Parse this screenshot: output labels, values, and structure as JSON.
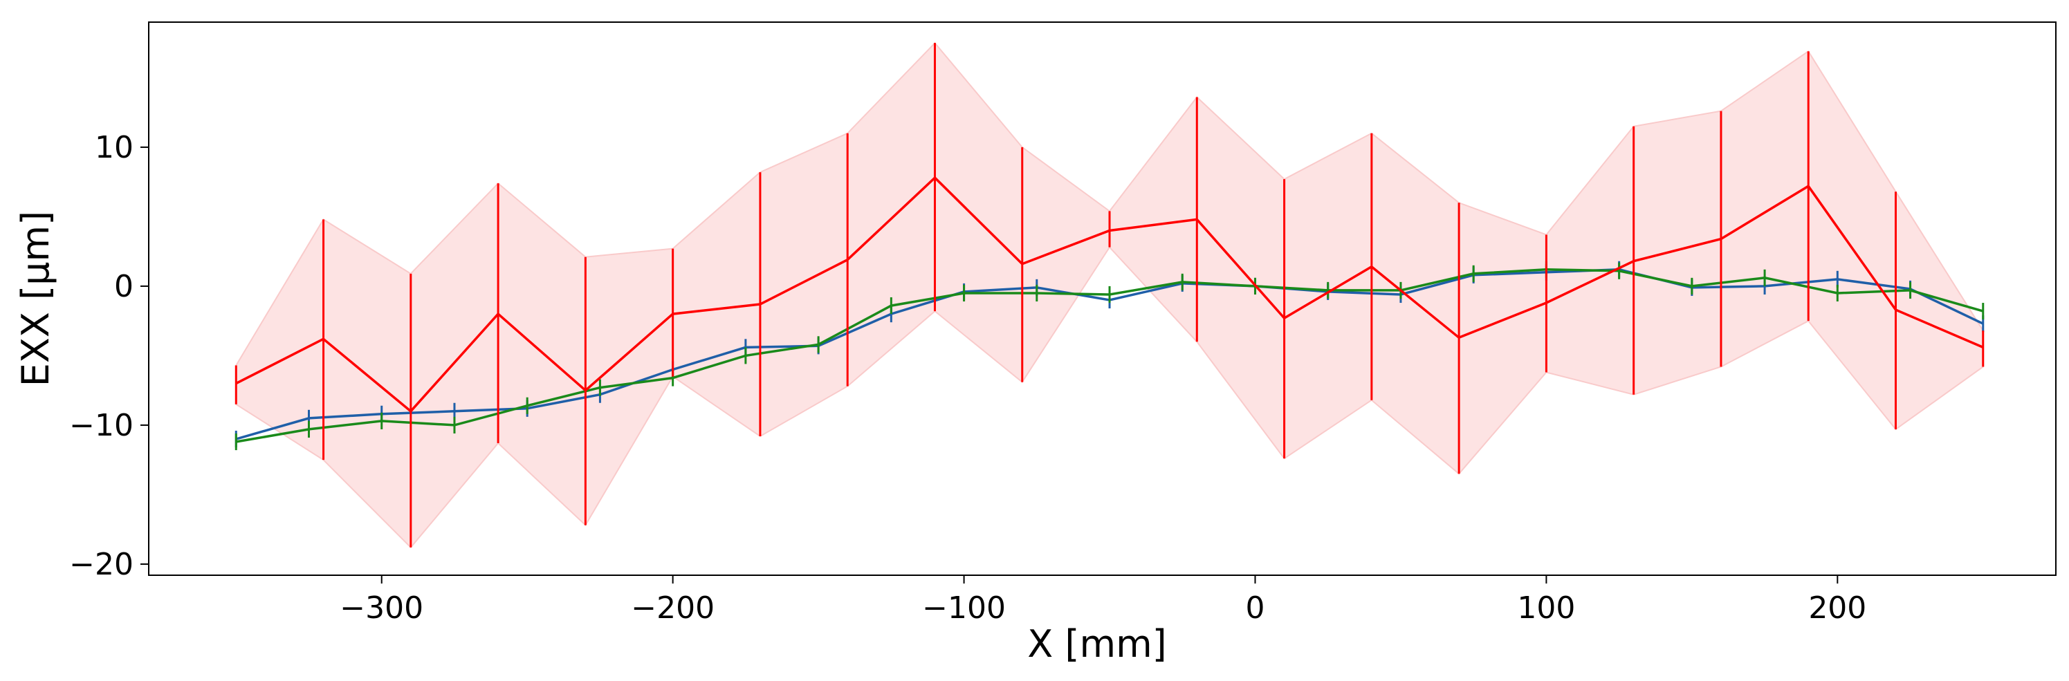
{
  "chart_data": {
    "type": "line",
    "title": "",
    "xlabel": "X [mm]",
    "ylabel": "EXX [μm]",
    "xlim": [
      -380,
      275
    ],
    "ylim": [
      -20.8,
      19
    ],
    "xticks": [
      -300,
      -200,
      -100,
      0,
      100,
      200
    ],
    "xtick_labels": [
      "−300",
      "−200",
      "−100",
      "0",
      "100",
      "200"
    ],
    "yticks": [
      -20,
      -10,
      0,
      10
    ],
    "ytick_labels": [
      "−20",
      "−10",
      "0",
      "10"
    ],
    "grid": false,
    "legend": null,
    "colors": {
      "red_series": "#ff0000",
      "red_band": "#fde3e3",
      "blue_series": "#1f5fa8",
      "green_series": "#1a8a1a"
    },
    "series": [
      {
        "name": "red",
        "color": "#ff0000",
        "x": [
          -350,
          -320,
          -290,
          -260,
          -230,
          -200,
          -170,
          -140,
          -110,
          -80,
          -50,
          -20,
          10,
          40,
          70,
          100,
          130,
          160,
          190,
          220,
          250
        ],
        "y": [
          -7.0,
          -3.8,
          -9.0,
          -2.0,
          -7.5,
          -2.0,
          -1.3,
          1.9,
          7.8,
          1.6,
          4.0,
          4.8,
          -2.3,
          1.4,
          -3.7,
          -1.2,
          1.8,
          3.4,
          7.2,
          -1.7,
          -4.4
        ],
        "err_low": [
          -8.5,
          -12.5,
          -18.8,
          -11.3,
          -17.2,
          -6.5,
          -10.8,
          -7.2,
          -1.8,
          -6.9,
          2.8,
          -4.0,
          -12.4,
          -8.2,
          -13.5,
          -6.2,
          -7.8,
          -5.8,
          -2.5,
          -10.3,
          -5.8
        ],
        "err_high": [
          -5.7,
          4.8,
          0.9,
          7.4,
          2.1,
          2.7,
          8.2,
          11.0,
          17.5,
          10.0,
          5.4,
          13.6,
          7.7,
          11.0,
          6.0,
          3.7,
          11.5,
          12.6,
          16.9,
          6.8,
          -3.2
        ]
      },
      {
        "name": "blue",
        "color": "#1f5fa8",
        "x": [
          -350,
          -325,
          -300,
          -275,
          -250,
          -225,
          -200,
          -175,
          -150,
          -125,
          -100,
          -75,
          -50,
          -25,
          0,
          25,
          50,
          75,
          100,
          125,
          150,
          175,
          200,
          225,
          250
        ],
        "y": [
          -11.0,
          -9.5,
          -9.2,
          -9.0,
          -8.8,
          -7.8,
          -6.0,
          -4.4,
          -4.3,
          -2.0,
          -0.4,
          -0.1,
          -1.0,
          0.2,
          0.0,
          -0.4,
          -0.6,
          0.8,
          1.0,
          1.2,
          -0.1,
          0.0,
          0.5,
          -0.2,
          -2.7
        ],
        "err": 0.6
      },
      {
        "name": "green",
        "color": "#1a8a1a",
        "x": [
          -350,
          -325,
          -300,
          -275,
          -250,
          -225,
          -200,
          -175,
          -150,
          -125,
          -100,
          -75,
          -50,
          -25,
          0,
          25,
          50,
          75,
          100,
          125,
          150,
          175,
          200,
          225,
          250
        ],
        "y": [
          -11.2,
          -10.3,
          -9.7,
          -10.0,
          -8.6,
          -7.3,
          -6.6,
          -5.0,
          -4.2,
          -1.4,
          -0.5,
          -0.5,
          -0.6,
          0.3,
          0.0,
          -0.3,
          -0.3,
          0.9,
          1.2,
          1.1,
          0.0,
          0.6,
          -0.5,
          -0.3,
          -1.8
        ],
        "err": 0.6
      }
    ]
  }
}
